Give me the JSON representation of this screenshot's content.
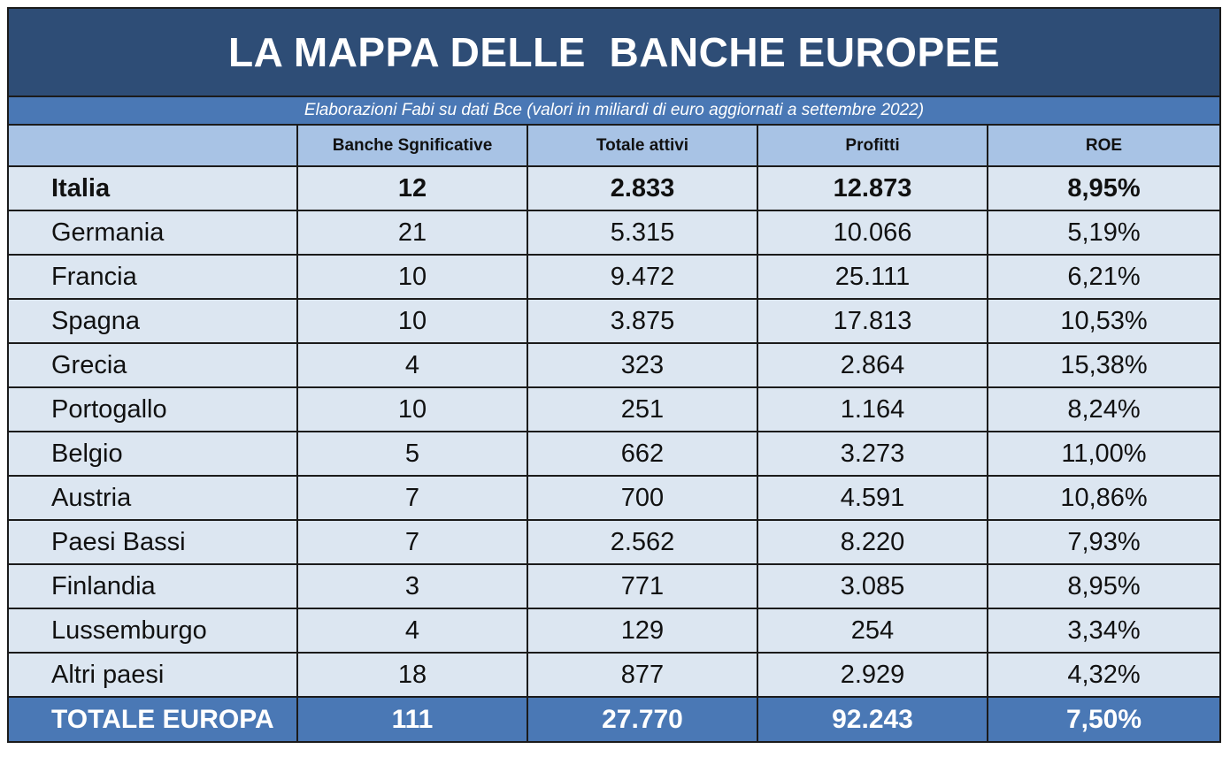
{
  "title": "LA MAPPA DELLE  BANCHE EUROPEE",
  "subtitle": "Elaborazioni Fabi su dati Bce (valori in miliardi di euro aggiornati a settembre 2022)",
  "chart_data": {
    "type": "table",
    "columns": [
      "",
      "Banche Sgnificative",
      "Totale attivi",
      "Profitti",
      "ROE"
    ],
    "rows": [
      {
        "country": "Italia",
        "banche": "12",
        "attivi": "2.833",
        "profitti": "12.873",
        "roe": "8,95%",
        "bold": true
      },
      {
        "country": "Germania",
        "banche": "21",
        "attivi": "5.315",
        "profitti": "10.066",
        "roe": "5,19%"
      },
      {
        "country": "Francia",
        "banche": "10",
        "attivi": "9.472",
        "profitti": "25.111",
        "roe": "6,21%"
      },
      {
        "country": "Spagna",
        "banche": "10",
        "attivi": "3.875",
        "profitti": "17.813",
        "roe": "10,53%"
      },
      {
        "country": "Grecia",
        "banche": "4",
        "attivi": "323",
        "profitti": "2.864",
        "roe": "15,38%"
      },
      {
        "country": "Portogallo",
        "banche": "10",
        "attivi": "251",
        "profitti": "1.164",
        "roe": "8,24%"
      },
      {
        "country": "Belgio",
        "banche": "5",
        "attivi": "662",
        "profitti": "3.273",
        "roe": "11,00%"
      },
      {
        "country": "Austria",
        "banche": "7",
        "attivi": "700",
        "profitti": "4.591",
        "roe": "10,86%"
      },
      {
        "country": "Paesi Bassi",
        "banche": "7",
        "attivi": "2.562",
        "profitti": "8.220",
        "roe": "7,93%"
      },
      {
        "country": "Finlandia",
        "banche": "3",
        "attivi": "771",
        "profitti": "3.085",
        "roe": "8,95%"
      },
      {
        "country": "Lussemburgo",
        "banche": "4",
        "attivi": "129",
        "profitti": "254",
        "roe": "3,34%"
      },
      {
        "country": "Altri paesi",
        "banche": "18",
        "attivi": "877",
        "profitti": "2.929",
        "roe": "4,32%"
      }
    ],
    "total": {
      "country": "TOTALE EUROPA",
      "banche": "111",
      "attivi": "27.770",
      "profitti": "92.243",
      "roe": "7,50%"
    }
  },
  "colors": {
    "title_bg": "#2e4d76",
    "subtitle_bg": "#4a78b5",
    "header_bg": "#a8c3e5",
    "row_bg": "#dce6f1",
    "total_bg": "#4a78b5"
  }
}
